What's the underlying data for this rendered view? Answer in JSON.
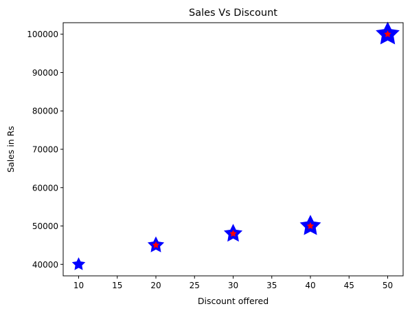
{
  "chart_data": {
    "type": "scatter",
    "title": "Sales Vs Discount",
    "xlabel": "Discount offered",
    "ylabel": "Sales in Rs",
    "x": [
      10,
      20,
      30,
      40,
      50
    ],
    "y": [
      40000,
      45000,
      48000,
      50000,
      100000
    ],
    "marker": "star",
    "marker_edge_color": "#0000ff",
    "marker_face_color": "#ff0000",
    "xlim": [
      8,
      52
    ],
    "ylim": [
      37000,
      103000
    ],
    "xticks": [
      10,
      15,
      20,
      25,
      30,
      35,
      40,
      45,
      50
    ],
    "yticks": [
      40000,
      50000,
      60000,
      70000,
      80000,
      90000,
      100000
    ],
    "grid": false,
    "legend": "none"
  }
}
